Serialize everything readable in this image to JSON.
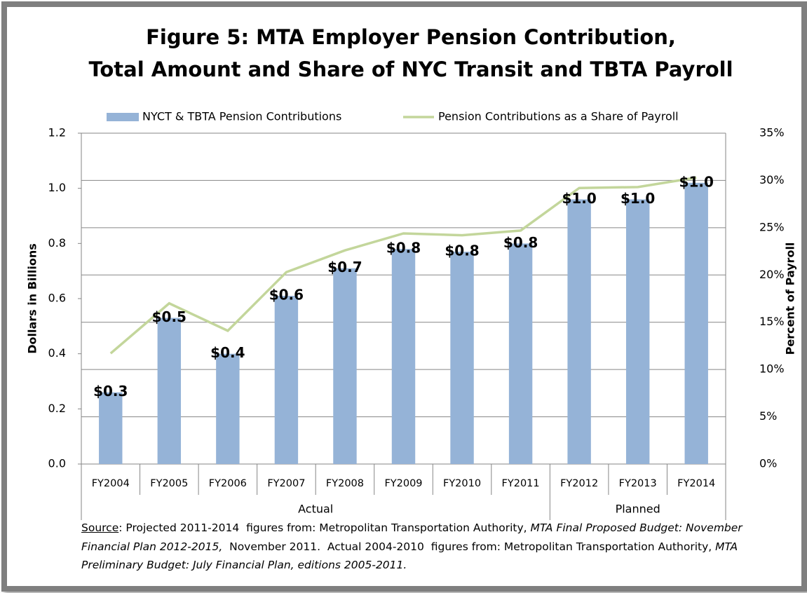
{
  "chart_data": {
    "type": "bar",
    "title": [
      "Figure 5: MTA Employer Pension Contribution,",
      "Total Amount and Share of NYC Transit and TBTA Payroll"
    ],
    "y_label": "Dollars in Billions",
    "y2_label": "Percent of Payroll",
    "categories": [
      "FY2004",
      "FY2005",
      "FY2006",
      "FY2007",
      "FY2008",
      "FY2009",
      "FY2010",
      "FY2011",
      "FY2012",
      "FY2013",
      "FY2014"
    ],
    "groups": [
      {
        "label": "Actual",
        "from": 0,
        "to": 7
      },
      {
        "label": "Planned",
        "from": 8,
        "to": 10
      }
    ],
    "series": [
      {
        "name": "NYCT & TBTA Pension Contributions",
        "type": "bar",
        "color": "#95b3d7",
        "values": [
          0.26,
          0.53,
          0.4,
          0.61,
          0.71,
          0.78,
          0.77,
          0.8,
          0.96,
          0.96,
          1.02
        ],
        "value_labels": [
          "$0.3",
          "$0.5",
          "$0.4",
          "$0.6",
          "$0.7",
          "$0.8",
          "$0.8",
          "$0.8",
          "$1.0",
          "$1.0",
          "$1.0"
        ]
      },
      {
        "name": "Pension Contributions as a Share of Payroll",
        "type": "line",
        "axis": "y2",
        "color": "#c3d69b",
        "values": [
          11.7,
          17.0,
          14.1,
          20.3,
          22.6,
          24.4,
          24.2,
          24.7,
          29.2,
          29.3,
          30.3
        ]
      }
    ],
    "ylim": [
      0,
      1.2
    ],
    "yticks": [
      {
        "value": 0,
        "label": "0.0"
      },
      0.2,
      0.4,
      0.6,
      0.8,
      {
        "value": 1,
        "label": "1.0"
      },
      1.2
    ],
    "y2lim": [
      0,
      35
    ],
    "y2ticks": [
      {
        "value": 0,
        "label": "0%"
      },
      {
        "value": 5,
        "label": "5%"
      },
      {
        "value": 10,
        "label": "10%"
      },
      {
        "value": 15,
        "label": "15%"
      },
      {
        "value": 20,
        "label": "20%"
      },
      {
        "value": 25,
        "label": "25%"
      },
      {
        "value": 30,
        "label": "30%"
      },
      {
        "value": 35,
        "label": "35%"
      }
    ],
    "grid": "y2",
    "legend": "top",
    "source": {
      "label": "Source",
      "parts": [
        {
          "text": ": Projected 2011-2014  figures from: Metropolitan Transportation Authority, ",
          "italic": false
        },
        {
          "text": "MTA Final Proposed Budget: November Financial Plan 2012-2015,",
          "italic": true
        },
        {
          "text": "  November 2011.  Actual 2004-2010  figures from: Metropolitan Transportation Authority, ",
          "italic": false
        },
        {
          "text": "MTA Preliminary Budget: July Financial Plan, editions 2005-2011.",
          "italic": true
        }
      ]
    }
  }
}
